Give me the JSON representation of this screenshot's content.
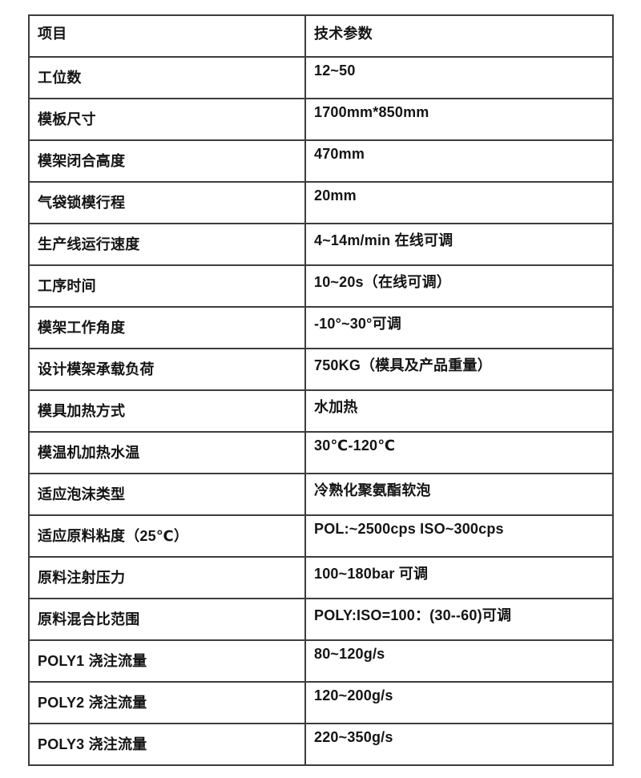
{
  "table": {
    "header": {
      "item": "项目",
      "value": "技术参数"
    },
    "rows": [
      {
        "item": "工位数",
        "value": "12~50"
      },
      {
        "item": "模板尺寸",
        "value": "1700mm*850mm"
      },
      {
        "item": "模架闭合高度",
        "value": "470mm"
      },
      {
        "item": "气袋锁模行程",
        "value": "20mm"
      },
      {
        "item": "生产线运行速度",
        "value": "4~14m/min 在线可调"
      },
      {
        "item": "工序时间",
        "value": "10~20s（在线可调）"
      },
      {
        "item": "模架工作角度",
        "value": "-10°~30°可调"
      },
      {
        "item": "设计模架承载负荷",
        "value": "750KG（模具及产品重量）"
      },
      {
        "item": "模具加热方式",
        "value": "水加热"
      },
      {
        "item": "模温机加热水温",
        "value": "30℃-120℃"
      },
      {
        "item": "适应泡沫类型",
        "value": "冷熟化聚氨酯软泡"
      },
      {
        "item": "适应原料粘度（25℃）",
        "value": "POL:~2500cps  ISO~300cps"
      },
      {
        "item": "原料注射压力",
        "value": "100~180bar 可调"
      },
      {
        "item": "原料混合比范围",
        "value": "POLY:ISO=100：(30--60)可调"
      },
      {
        "item": "POLY1 浇注流量",
        "value": "80~120g/s"
      },
      {
        "item": "POLY2 浇注流量",
        "value": "120~200g/s"
      },
      {
        "item": "POLY3 浇注流量",
        "value": "220~350g/s"
      }
    ],
    "border_color": "#3d3d3d",
    "text_color": "#141414",
    "background_color": "#ffffff"
  }
}
